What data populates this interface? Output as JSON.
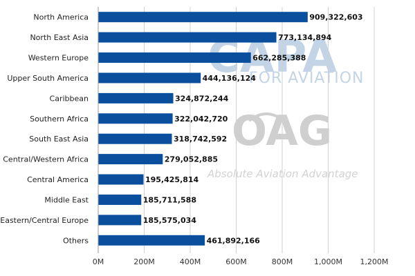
{
  "chart_data": {
    "type": "bar",
    "orientation": "horizontal",
    "title": "",
    "xlabel": "",
    "ylabel": "",
    "categories": [
      "North America",
      "North East Asia",
      "Western Europe",
      "Upper South America",
      "Caribbean",
      "Southern Africa",
      "South East Asia",
      "Central/Western Africa",
      "Central America",
      "Middle East",
      "Eastern/Central Europe",
      "Others"
    ],
    "values": [
      909322603,
      773134894,
      662285388,
      444136124,
      324872244,
      322042720,
      318742592,
      279052885,
      195425814,
      185711588,
      185575034,
      461892166
    ],
    "value_labels": [
      "909,322,603",
      "773,134,894",
      "662,285,388",
      "444,136,124",
      "324,872,244",
      "322,042,720",
      "318,742,592",
      "279,052,885",
      "195,425,814",
      "185,711,588",
      "185,575,034",
      "461,892,166"
    ],
    "xlim": [
      0,
      1200000000
    ],
    "xticks": [
      0,
      200000000,
      400000000,
      600000000,
      800000000,
      1000000000,
      1200000000
    ],
    "xtick_labels": [
      "0M",
      "200M",
      "400M",
      "600M",
      "800M",
      "1,000M",
      "1,200M"
    ],
    "grid": "vertical",
    "legend": "none",
    "bar_color": "#0a4f9e"
  },
  "watermarks": {
    "capa": "CAPA",
    "capa_sub": "FOR AVIATION",
    "oag": "OAG",
    "oag_sub": "Absolute Aviation Advantage"
  }
}
